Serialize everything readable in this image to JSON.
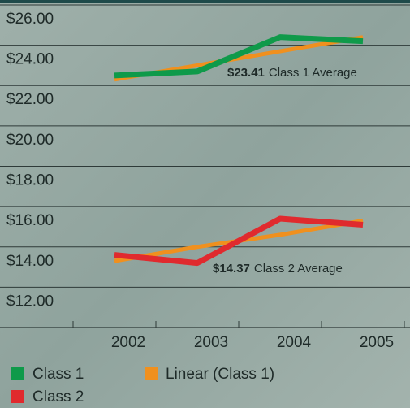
{
  "chart_data": {
    "type": "line",
    "categories": [
      "2002",
      "2003",
      "2004",
      "2005"
    ],
    "series": [
      {
        "name": "Class 1",
        "color": "#0f9a4a",
        "values": [
          22.5,
          22.7,
          24.4,
          24.2
        ]
      },
      {
        "name": "Linear (Class 1)",
        "color": "#f0901e",
        "values": [
          22.3,
          23.0,
          23.7,
          24.4
        ]
      },
      {
        "name": "Class 2",
        "color": "#e02a2e",
        "values": [
          13.6,
          13.2,
          15.4,
          15.1
        ]
      },
      {
        "name": null,
        "color": "#f0901e",
        "values": [
          13.3,
          14.0,
          14.6,
          15.3
        ]
      }
    ],
    "ylim": [
      10,
      26.12
    ],
    "yticks": [
      {
        "value": 12,
        "label": "$12.00"
      },
      {
        "value": 14,
        "label": "$14.00"
      },
      {
        "value": 16,
        "label": "$16.00"
      },
      {
        "value": 18,
        "label": "$18.00"
      },
      {
        "value": 20,
        "label": "$20.00"
      },
      {
        "value": 22,
        "label": "$22.00"
      },
      {
        "value": 24,
        "label": "$24.00"
      },
      {
        "value": 26,
        "label": "$26.00"
      }
    ],
    "grid": true,
    "annotations": [
      {
        "value": "$23.41",
        "text": "Class 1 Average"
      },
      {
        "value": "$14.37",
        "text": "Class 2 Average"
      }
    ]
  }
}
